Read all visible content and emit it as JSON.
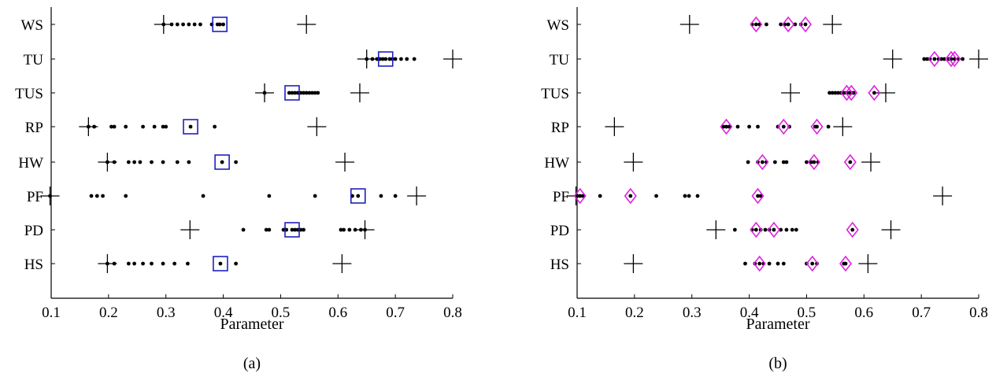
{
  "chart_data": [
    {
      "type": "scatter",
      "panel_label": "(a)",
      "xlabel": "Parameter",
      "xlim": [
        0.1,
        0.8
      ],
      "xticks": [
        "0.1",
        "0.2",
        "0.3",
        "0.4",
        "0.5",
        "0.6",
        "0.7",
        "0.8"
      ],
      "categories": [
        "WS",
        "TU",
        "TUS",
        "RP",
        "HW",
        "PF",
        "PD",
        "HS"
      ],
      "marker_colors": {
        "dots": "#000000",
        "range": "#000000",
        "highlight": "#1f1fbf"
      },
      "highlight_shape": "square",
      "rows": [
        {
          "category": "WS",
          "range": [
            0.296,
            0.545
          ],
          "highlight": [
            0.394
          ],
          "dots": [
            0.296,
            0.31,
            0.32,
            0.33,
            0.34,
            0.35,
            0.36,
            0.38,
            0.39,
            0.394,
            0.4
          ]
        },
        {
          "category": "TU",
          "range": [
            0.65,
            0.8
          ],
          "highlight": [
            0.683
          ],
          "dots": [
            0.65,
            0.66,
            0.668,
            0.673,
            0.678,
            0.683,
            0.69,
            0.695,
            0.7,
            0.71,
            0.72,
            0.733
          ]
        },
        {
          "category": "TUS",
          "range": [
            0.472,
            0.638
          ],
          "highlight": [
            0.52
          ],
          "dots": [
            0.472,
            0.515,
            0.52,
            0.525,
            0.53,
            0.535,
            0.54,
            0.545,
            0.55,
            0.555,
            0.56,
            0.565
          ]
        },
        {
          "category": "RP",
          "range": [
            0.165,
            0.563
          ],
          "highlight": [
            0.343
          ],
          "dots": [
            0.165,
            0.175,
            0.205,
            0.21,
            0.23,
            0.26,
            0.28,
            0.295,
            0.3,
            0.343,
            0.385
          ]
        },
        {
          "category": "HW",
          "range": [
            0.198,
            0.612
          ],
          "highlight": [
            0.398
          ],
          "dots": [
            0.198,
            0.21,
            0.235,
            0.245,
            0.255,
            0.275,
            0.295,
            0.32,
            0.34,
            0.398,
            0.422
          ]
        },
        {
          "category": "PF",
          "range": [
            0.098,
            0.737
          ],
          "highlight": [
            0.635
          ],
          "dots": [
            0.098,
            0.17,
            0.18,
            0.19,
            0.23,
            0.365,
            0.48,
            0.56,
            0.625,
            0.635,
            0.675,
            0.7
          ]
        },
        {
          "category": "PD",
          "range": [
            0.342,
            0.647
          ],
          "highlight": [
            0.52
          ],
          "dots": [
            0.435,
            0.475,
            0.48,
            0.505,
            0.51,
            0.52,
            0.525,
            0.53,
            0.535,
            0.54,
            0.605,
            0.61,
            0.62,
            0.63,
            0.64,
            0.647
          ]
        },
        {
          "category": "HS",
          "range": [
            0.198,
            0.607
          ],
          "highlight": [
            0.395
          ],
          "dots": [
            0.198,
            0.21,
            0.235,
            0.245,
            0.26,
            0.275,
            0.295,
            0.315,
            0.338,
            0.395,
            0.422
          ]
        }
      ]
    },
    {
      "type": "scatter",
      "panel_label": "(b)",
      "xlabel": "Parameter",
      "xlim": [
        0.1,
        0.8
      ],
      "xticks": [
        "0.1",
        "0.2",
        "0.3",
        "0.4",
        "0.5",
        "0.6",
        "0.7",
        "0.8"
      ],
      "categories": [
        "WS",
        "TU",
        "TUS",
        "RP",
        "HW",
        "PF",
        "PD",
        "HS"
      ],
      "marker_colors": {
        "dots": "#000000",
        "range": "#000000",
        "highlight": "#e020e0"
      },
      "highlight_shape": "diamond",
      "rows": [
        {
          "category": "WS",
          "range": [
            0.296,
            0.545
          ],
          "highlight": [
            0.412,
            0.468,
            0.498
          ],
          "dots": [
            0.405,
            0.412,
            0.418,
            0.43,
            0.455,
            0.462,
            0.468,
            0.48,
            0.49,
            0.498
          ]
        },
        {
          "category": "TU",
          "range": [
            0.65,
            0.8
          ],
          "highlight": [
            0.723,
            0.752,
            0.758
          ],
          "dots": [
            0.705,
            0.71,
            0.715,
            0.723,
            0.73,
            0.735,
            0.74,
            0.748,
            0.752,
            0.758,
            0.765,
            0.772
          ]
        },
        {
          "category": "TUS",
          "range": [
            0.472,
            0.638
          ],
          "highlight": [
            0.57,
            0.578,
            0.618
          ],
          "dots": [
            0.54,
            0.545,
            0.55,
            0.555,
            0.56,
            0.565,
            0.57,
            0.575,
            0.578,
            0.582,
            0.618
          ]
        },
        {
          "category": "RP",
          "range": [
            0.165,
            0.563
          ],
          "highlight": [
            0.36,
            0.46,
            0.518
          ],
          "dots": [
            0.355,
            0.36,
            0.365,
            0.38,
            0.4,
            0.415,
            0.45,
            0.46,
            0.47,
            0.515,
            0.518,
            0.538
          ]
        },
        {
          "category": "HW",
          "range": [
            0.198,
            0.612
          ],
          "highlight": [
            0.423,
            0.513,
            0.576
          ],
          "dots": [
            0.398,
            0.415,
            0.423,
            0.43,
            0.445,
            0.46,
            0.465,
            0.5,
            0.508,
            0.513,
            0.52,
            0.576
          ]
        },
        {
          "category": "PF",
          "range": [
            0.098,
            0.737
          ],
          "highlight": [
            0.105,
            0.193,
            0.415
          ],
          "dots": [
            0.1,
            0.105,
            0.11,
            0.14,
            0.193,
            0.238,
            0.288,
            0.295,
            0.31,
            0.415,
            0.42
          ]
        },
        {
          "category": "PD",
          "range": [
            0.342,
            0.647
          ],
          "highlight": [
            0.412,
            0.443,
            0.58
          ],
          "dots": [
            0.375,
            0.405,
            0.412,
            0.42,
            0.428,
            0.435,
            0.443,
            0.455,
            0.465,
            0.475,
            0.482,
            0.58
          ]
        },
        {
          "category": "HS",
          "range": [
            0.198,
            0.607
          ],
          "highlight": [
            0.418,
            0.51,
            0.568
          ],
          "dots": [
            0.393,
            0.41,
            0.418,
            0.425,
            0.435,
            0.45,
            0.46,
            0.5,
            0.51,
            0.518,
            0.565,
            0.568
          ]
        }
      ]
    }
  ]
}
